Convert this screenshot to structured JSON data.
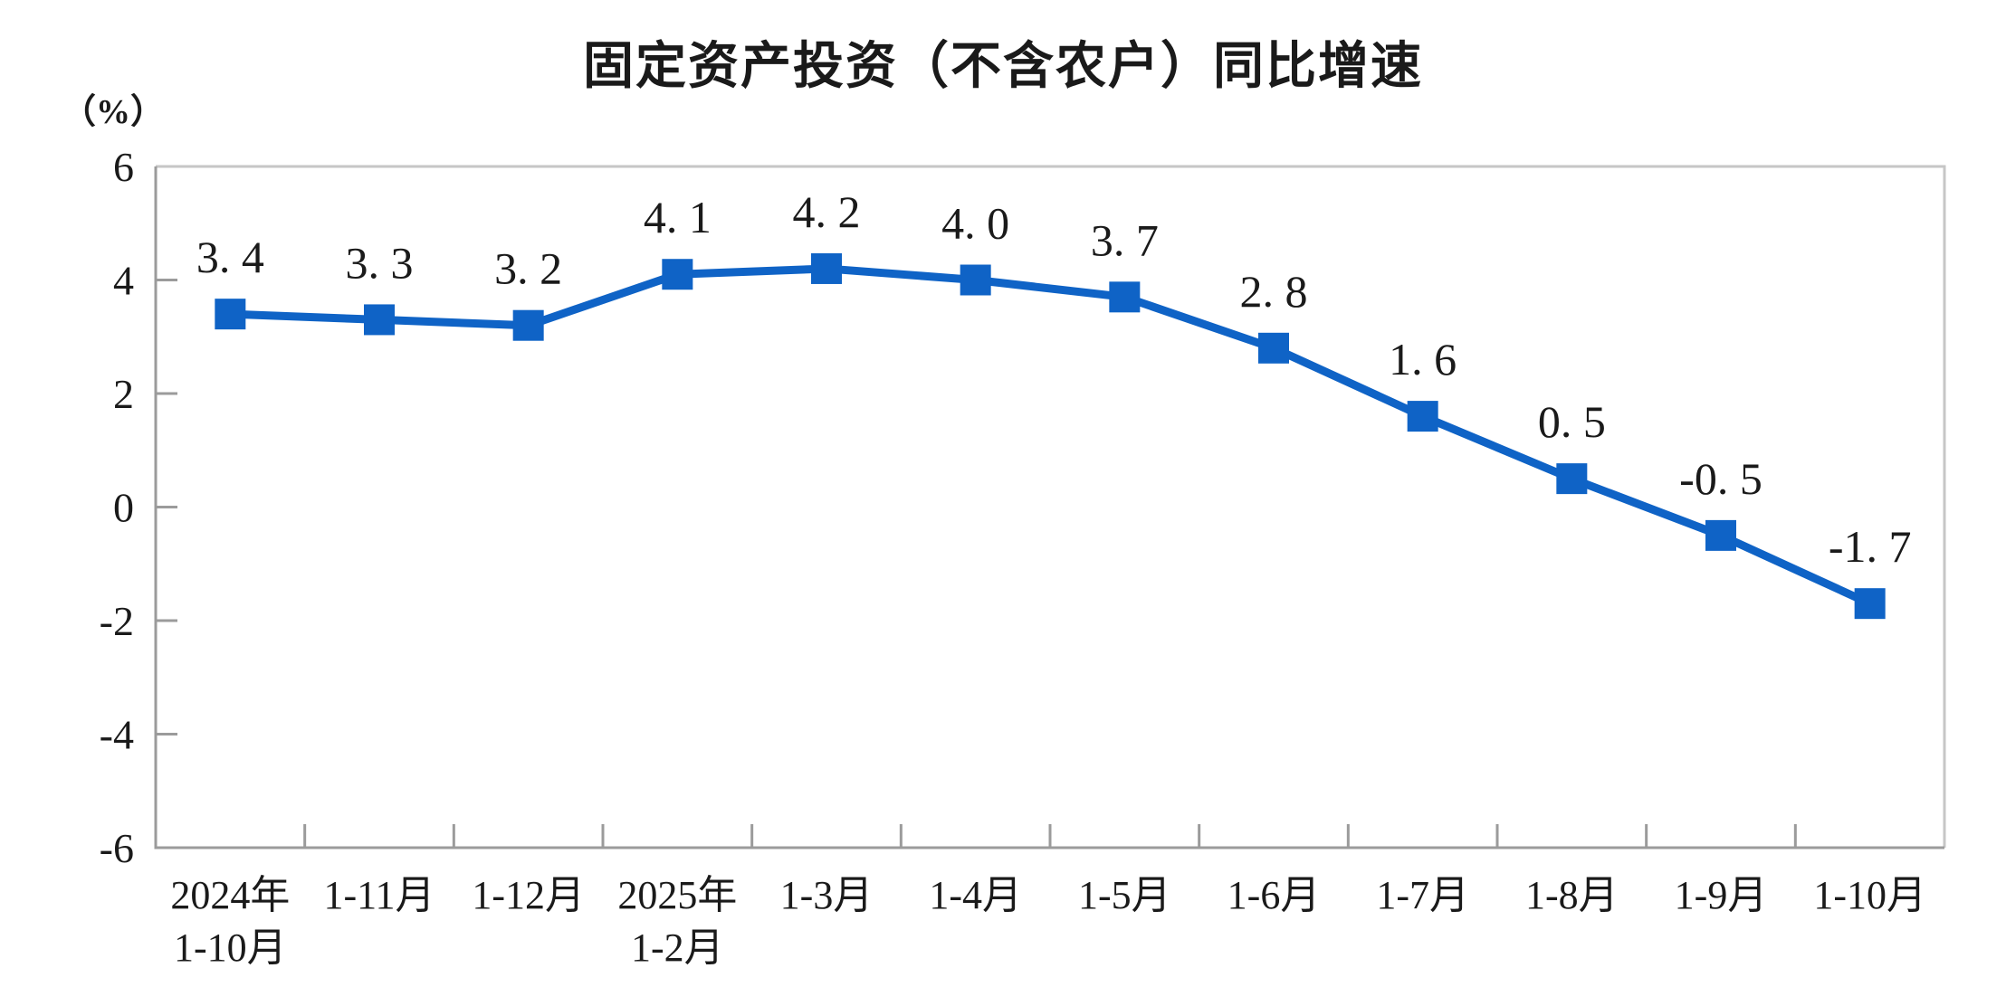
{
  "title": "固定资产投资（不含农户）同比增速",
  "y_axis_unit": "（%）",
  "chart_data": {
    "type": "line",
    "title": "固定资产投资（不含农户）同比增速",
    "ylabel": "（%）",
    "categories": [
      "2024年\n1-10月",
      "1-11月",
      "1-12月",
      "2025年\n1-2月",
      "1-3月",
      "1-4月",
      "1-5月",
      "1-6月",
      "1-7月",
      "1-8月",
      "1-9月",
      "1-10月"
    ],
    "values": [
      3.4,
      3.3,
      3.2,
      4.1,
      4.2,
      4.0,
      3.7,
      2.8,
      1.6,
      0.5,
      -0.5,
      -1.7
    ],
    "data_labels": [
      "3. 4",
      "3. 3",
      "3. 2",
      "4. 1",
      "4. 2",
      "4. 0",
      "3. 7",
      "2. 8",
      "1. 6",
      "0. 5",
      "-0. 5",
      "-1. 7"
    ],
    "y_ticks": [
      6,
      4,
      2,
      0,
      -2,
      -4,
      -6
    ],
    "ylim": [
      -6,
      6
    ],
    "grid": false,
    "legend": "none",
    "marker": "square",
    "line_color": "#0F63C6",
    "marker_color": "#0F63C6",
    "frame_color": "#c6c6c6",
    "axis_color": "#9b9b9b",
    "text_color": "#1a1a1a"
  }
}
